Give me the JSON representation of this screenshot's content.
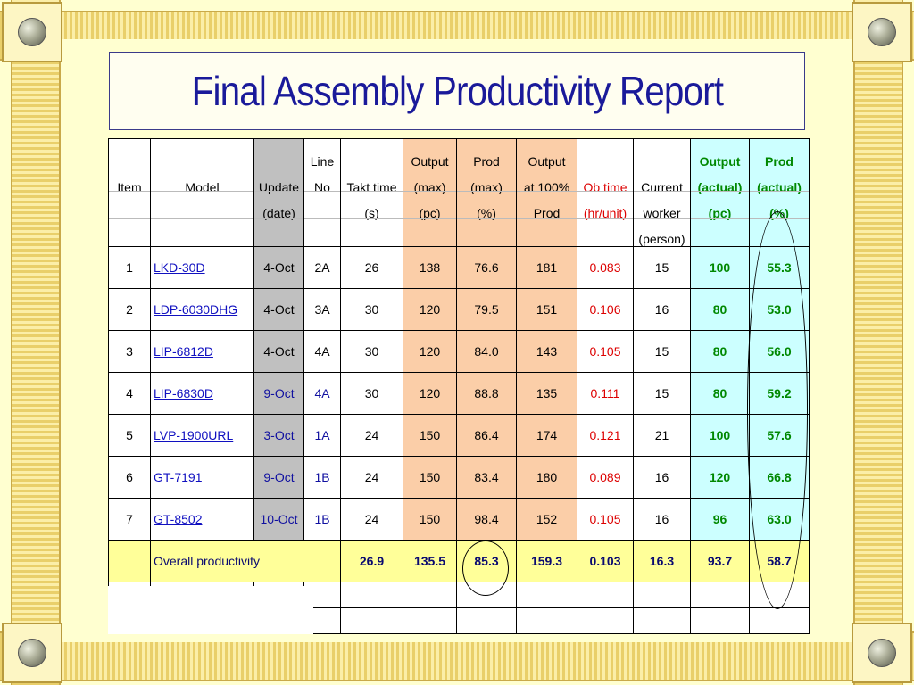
{
  "title": "Final Assembly Productivity Report",
  "headers": {
    "item": [
      "",
      "Item",
      "",
      ""
    ],
    "model": [
      "",
      "Model",
      "",
      ""
    ],
    "update": [
      "",
      "Update",
      "(date)",
      ""
    ],
    "line": [
      "Line",
      "No",
      "",
      ""
    ],
    "takt": [
      "",
      "Takt time",
      "(s)",
      ""
    ],
    "output_max": [
      "Output",
      "(max)",
      "(pc)",
      ""
    ],
    "prod_max": [
      "Prod",
      "(max)",
      "(%)",
      ""
    ],
    "output100": [
      "Output",
      "at 100%",
      "Prod",
      ""
    ],
    "ob_time": [
      "",
      "Ob time",
      "(hr/unit)",
      ""
    ],
    "worker": [
      "",
      "Current",
      "worker",
      "(person)"
    ],
    "output_actual": [
      "Output",
      "(actual)",
      "(pc)",
      ""
    ],
    "prod_actual": [
      "Prod",
      "(actual)",
      "(%)",
      ""
    ]
  },
  "rows": [
    {
      "item": "1",
      "model": "LKD-30D",
      "update": "4-Oct",
      "line": "2A",
      "takt": "26",
      "output_max": "138",
      "prod_max": "76.6",
      "output100": "181",
      "ob_time": "0.083",
      "worker": "15",
      "output_actual": "100",
      "prod_actual": "55.3"
    },
    {
      "item": "2",
      "model": "LDP-6030DHG",
      "update": "4-Oct",
      "line": "3A",
      "takt": "30",
      "output_max": "120",
      "prod_max": "79.5",
      "output100": "151",
      "ob_time": "0.106",
      "worker": "16",
      "output_actual": "80",
      "prod_actual": "53.0"
    },
    {
      "item": "3",
      "model": "LIP-6812D",
      "update": "4-Oct",
      "line": "4A",
      "takt": "30",
      "output_max": "120",
      "prod_max": "84.0",
      "output100": "143",
      "ob_time": "0.105",
      "worker": "15",
      "output_actual": "80",
      "prod_actual": "56.0"
    },
    {
      "item": "4",
      "model": "LIP-6830D",
      "update": "9-Oct",
      "line": "4A",
      "takt": "30",
      "output_max": "120",
      "prod_max": "88.8",
      "output100": "135",
      "ob_time": "0.111",
      "worker": "15",
      "output_actual": "80",
      "prod_actual": "59.2"
    },
    {
      "item": "5",
      "model": "LVP-1900URL",
      "update": "3-Oct",
      "line": "1A",
      "takt": "24",
      "output_max": "150",
      "prod_max": "86.4",
      "output100": "174",
      "ob_time": "0.121",
      "worker": "21",
      "output_actual": "100",
      "prod_actual": "57.6"
    },
    {
      "item": "6",
      "model": "GT-7191 ",
      "update": "9-Oct",
      "line": "1B",
      "takt": "24",
      "output_max": "150",
      "prod_max": "83.4",
      "output100": "180",
      "ob_time": "0.089",
      "worker": "16",
      "output_actual": "120",
      "prod_actual": "66.8"
    },
    {
      "item": "7",
      "model": "GT-8502 ",
      "update": "10-Oct",
      "line": "1B",
      "takt": "24",
      "output_max": "150",
      "prod_max": "98.4",
      "output100": "152",
      "ob_time": "0.105",
      "worker": "16",
      "output_actual": "96",
      "prod_actual": "63.0"
    }
  ],
  "overall": {
    "label": "Overall productivity",
    "takt": "26.9",
    "output_max": "135.5",
    "prod_max": "85.3",
    "output100": "159.3",
    "ob_time": "0.103",
    "worker": "16.3",
    "output_actual": "93.7",
    "prod_actual": "58.7"
  },
  "colors": {
    "title": "#1a1a9a",
    "update_column": "#c0c0c0",
    "max_columns": "#fbcea8",
    "actual_columns": "#ccffff",
    "overall_row": "#ffff99",
    "ob_time_text": "#dd0000",
    "actual_text": "#008800"
  }
}
